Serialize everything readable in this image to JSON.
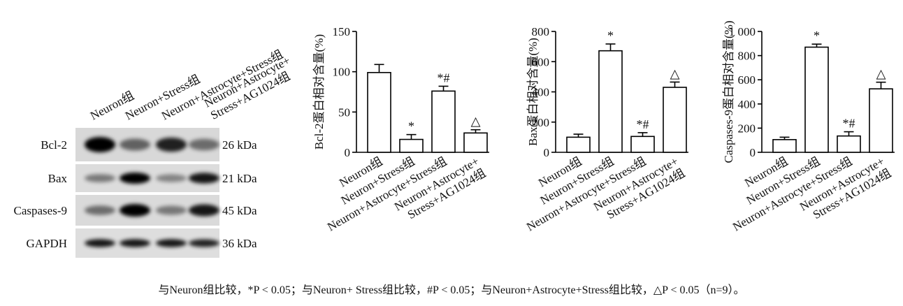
{
  "blot": {
    "lanes": [
      "Neuron组",
      "Neuron+Stress组",
      "Neuron+Astrocyte+Stress组",
      "Neuron+Astrocyte+\nStress+AG1024组"
    ],
    "rows": [
      {
        "protein": "Bcl-2",
        "size": "26 kDa"
      },
      {
        "protein": "Bax",
        "size": "21 kDa"
      },
      {
        "protein": "Caspases-9",
        "size": "45 kDa"
      },
      {
        "protein": "GAPDH",
        "size": "36 kDa"
      }
    ]
  },
  "chart_data": [
    {
      "type": "bar",
      "y_label": "Bcl-2蛋白相对含量(%)",
      "categories": [
        "Neuron组",
        "Neuron+Stress组",
        "Neuron+Astrocyte+Stress组",
        "Neuron+Astrocyte+\nStress+AG1024组"
      ],
      "values": [
        99,
        16,
        76,
        24
      ],
      "errors": [
        10,
        6,
        6,
        4
      ],
      "annotations": [
        null,
        "*",
        "*#",
        "△"
      ],
      "color": "#ffffff",
      "ylim": [
        0,
        150
      ],
      "yticks": [
        0,
        50,
        100,
        150
      ]
    },
    {
      "type": "bar",
      "y_label": "Bax蛋白相对含量(%)",
      "categories": [
        "Neuron组",
        "Neuron+Stress组",
        "Neuron+Astrocyte+Stress组",
        "Neuron+Astrocyte+\nStress+AG1024组"
      ],
      "values": [
        100,
        672,
        105,
        430
      ],
      "errors": [
        20,
        45,
        25,
        35
      ],
      "annotations": [
        null,
        "*",
        "*#",
        "△"
      ],
      "color": "#ffffff",
      "ylim": [
        0,
        800
      ],
      "yticks": [
        0,
        200,
        400,
        600,
        800
      ]
    },
    {
      "type": "bar",
      "y_label": "Caspases-9蛋白相对含量(%)",
      "categories": [
        "Neuron组",
        "Neuron+Stress组",
        "Neuron+Astrocyte+Stress组",
        "Neuron+Astrocyte+\nStress+AG1024组"
      ],
      "values": [
        105,
        870,
        135,
        525
      ],
      "errors": [
        20,
        25,
        35,
        55
      ],
      "annotations": [
        null,
        "*",
        "*#",
        "△"
      ],
      "color": "#ffffff",
      "ylim": [
        0,
        1000
      ],
      "yticks": [
        0,
        200,
        400,
        600,
        800,
        {
          "value": 1000,
          "label": "1 000"
        }
      ]
    }
  ],
  "caption": "与Neuron组比较，*P < 0.05；与Neuron+ Stress组比较，#P < 0.05；与Neuron+Astrocyte+Stress组比较，△P < 0.05（n=9）。"
}
